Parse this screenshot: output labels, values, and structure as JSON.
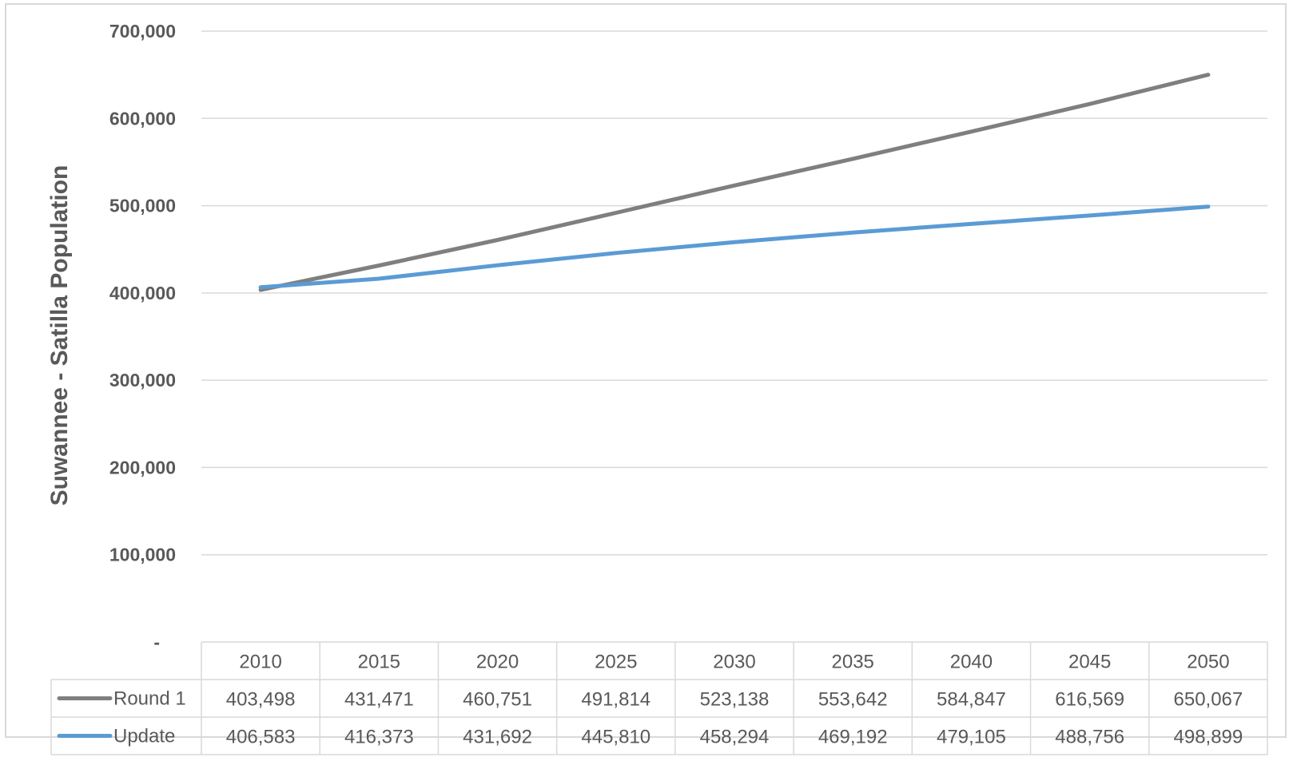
{
  "chart_data": {
    "type": "line",
    "title": "",
    "xlabel": "",
    "ylabel": "Suwannee - Satilla Population",
    "categories": [
      "2010",
      "2015",
      "2020",
      "2025",
      "2030",
      "2035",
      "2040",
      "2045",
      "2050"
    ],
    "ylim": [
      0,
      700000
    ],
    "yticks": [
      "-",
      "100,000",
      "200,000",
      "300,000",
      "400,000",
      "500,000",
      "600,000",
      "700,000"
    ],
    "grid": true,
    "legend": "data-table",
    "series": [
      {
        "name": "Round 1",
        "color": "#7f7f7f",
        "values": [
          403498,
          431471,
          460751,
          491814,
          523138,
          553642,
          584847,
          616569,
          650067
        ],
        "labels": [
          "403,498",
          "431,471",
          "460,751",
          "491,814",
          "523,138",
          "553,642",
          "584,847",
          "616,569",
          "650,067"
        ]
      },
      {
        "name": "Update",
        "color": "#5b9bd5",
        "values": [
          406583,
          416373,
          431692,
          445810,
          458294,
          469192,
          479105,
          488756,
          498899
        ],
        "labels": [
          "406,583",
          "416,373",
          "431,692",
          "445,810",
          "458,294",
          "469,192",
          "479,105",
          "488,756",
          "498,899"
        ]
      }
    ]
  }
}
